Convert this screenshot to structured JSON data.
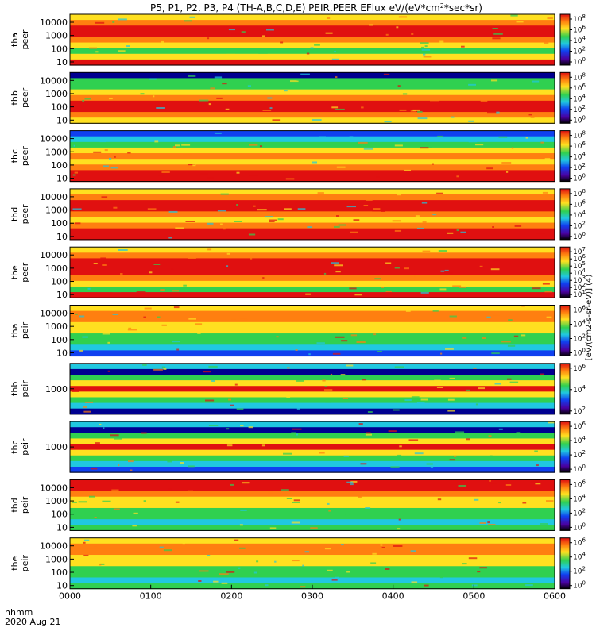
{
  "chart_data": {
    "type": "heatmap",
    "title": "P5, P1, P2, P3, P4 (TH-A,B,C,D,E) PEIR,PEER EFlux eV/(eV*cm",
    "title_sup": "2",
    "title_tail": "*sec*sr)",
    "colorbar_label": "[eV/(cm2-s-sr-eV)] (4)",
    "x_axis": {
      "label_top": "hhmm",
      "label_bottom": "2020 Aug 21",
      "ticks": [
        "0000",
        "0100",
        "0200",
        "0300",
        "0400",
        "0500",
        "0600"
      ]
    },
    "panels": [
      {
        "probe": "tha",
        "kind": "peer",
        "yticks": [
          "10000",
          "1000",
          "100",
          "10"
        ],
        "cbar_ticks": [
          "10^8",
          "10^6",
          "10^4",
          "10^2",
          "10^0"
        ]
      },
      {
        "probe": "thb",
        "kind": "peer",
        "yticks": [
          "10000",
          "1000",
          "100",
          "10"
        ],
        "cbar_ticks": [
          "10^8",
          "10^6",
          "10^4",
          "10^2",
          "10^0"
        ]
      },
      {
        "probe": "thc",
        "kind": "peer",
        "yticks": [
          "10000",
          "1000",
          "100",
          "10"
        ],
        "cbar_ticks": [
          "10^8",
          "10^6",
          "10^4",
          "10^2",
          "10^0"
        ]
      },
      {
        "probe": "thd",
        "kind": "peer",
        "yticks": [
          "10000",
          "1000",
          "100",
          "10"
        ],
        "cbar_ticks": [
          "10^8",
          "10^6",
          "10^4",
          "10^2",
          "10^0"
        ]
      },
      {
        "probe": "the",
        "kind": "peer",
        "yticks": [
          "10000",
          "1000",
          "100",
          "10"
        ],
        "cbar_ticks": [
          "10^7",
          "10^6",
          "10^5",
          "10^4",
          "10^3",
          "10^2",
          "10^1"
        ]
      },
      {
        "probe": "tha",
        "kind": "peir",
        "yticks": [
          "10000",
          "1000",
          "100",
          "10"
        ],
        "cbar_ticks": [
          "10^6",
          "10^4",
          "10^2",
          "10^0"
        ]
      },
      {
        "probe": "thb",
        "kind": "peir",
        "yticks": [
          "1000"
        ],
        "cbar_ticks": [
          "10^6",
          "10^4",
          "10^2"
        ]
      },
      {
        "probe": "thc",
        "kind": "peir",
        "yticks": [
          "1000"
        ],
        "cbar_ticks": [
          "10^6",
          "10^4",
          "10^2",
          "10^0"
        ]
      },
      {
        "probe": "thd",
        "kind": "peir",
        "yticks": [
          "10000",
          "1000",
          "100",
          "10"
        ],
        "cbar_ticks": [
          "10^6",
          "10^4",
          "10^2",
          "10^0"
        ]
      },
      {
        "probe": "the",
        "kind": "peir",
        "yticks": [
          "10000",
          "1000",
          "100",
          "10"
        ],
        "cbar_ticks": [
          "10^6",
          "10^4",
          "10^2",
          "10^0"
        ]
      }
    ],
    "colors": {
      "red": "#e01010",
      "orange": "#ff7f10",
      "yellow": "#ffe020",
      "green": "#30d050",
      "cyan": "#20c8e0",
      "blue": "#1040f0",
      "dark_blue": "#000090"
    }
  }
}
